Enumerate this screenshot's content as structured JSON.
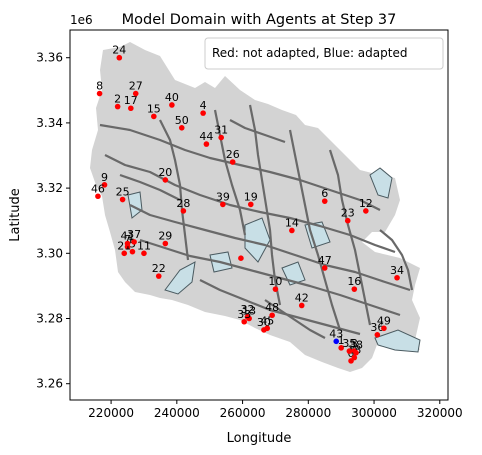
{
  "chart_data": {
    "type": "scatter",
    "title": "Model Domain with Agents at Step 37",
    "xlabel": "Longitude",
    "ylabel": "Latitude",
    "y_offset_label": "1e6",
    "xlim": [
      207500,
      322500
    ],
    "ylim": [
      3255000,
      3368500
    ],
    "x_ticks": [
      220000,
      240000,
      260000,
      280000,
      300000,
      320000
    ],
    "x_tick_labels": [
      "220000",
      "240000",
      "260000",
      "280000",
      "300000",
      "320000"
    ],
    "y_ticks": [
      3260000,
      3280000,
      3300000,
      3320000,
      3340000,
      3360000
    ],
    "y_tick_labels": [
      "3.26",
      "3.28",
      "3.30",
      "3.32",
      "3.34",
      "3.36"
    ],
    "legend_text": "Red: not adapted, Blue: adapted",
    "legend_position": "top-right",
    "colors": {
      "not_adapted": "#ff0000",
      "adapted": "#0000ff",
      "domain_fill": "#d3d3d3",
      "water_fill": "#c8dfe6",
      "river_stroke": "#696969"
    },
    "agents": [
      {
        "id": "0",
        "x": 293000,
        "y": 3267000,
        "adapted": false
      },
      {
        "id": "1",
        "x": 290000,
        "y": 3271000,
        "adapted": false
      },
      {
        "id": "2",
        "x": 222000,
        "y": 3345000,
        "adapted": false
      },
      {
        "id": "3",
        "x": 294000,
        "y": 3270000,
        "adapted": false
      },
      {
        "id": "4",
        "x": 248000,
        "y": 3343000,
        "adapted": false
      },
      {
        "id": "5",
        "x": 226500,
        "y": 3300500,
        "adapted": false
      },
      {
        "id": "6",
        "x": 285000,
        "y": 3316000,
        "adapted": false
      },
      {
        "id": "7",
        "x": 225000,
        "y": 3302000,
        "adapted": false
      },
      {
        "id": "8",
        "x": 216500,
        "y": 3349000,
        "adapted": false
      },
      {
        "id": "9",
        "x": 218000,
        "y": 3321000,
        "adapted": false
      },
      {
        "id": "10",
        "x": 270000,
        "y": 3289000,
        "adapted": false
      },
      {
        "id": "11",
        "x": 230000,
        "y": 3300000,
        "adapted": false
      },
      {
        "id": "12",
        "x": 297500,
        "y": 3313000,
        "adapted": false
      },
      {
        "id": "13",
        "x": 262000,
        "y": 3280000,
        "adapted": false
      },
      {
        "id": "14",
        "x": 275000,
        "y": 3307000,
        "adapted": false
      },
      {
        "id": "15",
        "x": 233000,
        "y": 3342000,
        "adapted": false
      },
      {
        "id": "16",
        "x": 294000,
        "y": 3289000,
        "adapted": false
      },
      {
        "id": "17",
        "x": 226000,
        "y": 3344500,
        "adapted": false
      },
      {
        "id": "18",
        "x": 294000,
        "y": 3268000,
        "adapted": false
      },
      {
        "id": "19",
        "x": 262500,
        "y": 3315000,
        "adapted": false
      },
      {
        "id": "20",
        "x": 236500,
        "y": 3322500,
        "adapted": false
      },
      {
        "id": "21",
        "x": 224000,
        "y": 3300000,
        "adapted": false
      },
      {
        "id": "22",
        "x": 234500,
        "y": 3293000,
        "adapted": false
      },
      {
        "id": "23",
        "x": 292000,
        "y": 3310000,
        "adapted": false
      },
      {
        "id": "24",
        "x": 222500,
        "y": 3360000,
        "adapted": false
      },
      {
        "id": "25",
        "x": 223500,
        "y": 3316500,
        "adapted": false
      },
      {
        "id": "26",
        "x": 257000,
        "y": 3328000,
        "adapted": false
      },
      {
        "id": "27",
        "x": 227500,
        "y": 3349000,
        "adapted": false
      },
      {
        "id": "28",
        "x": 242000,
        "y": 3313000,
        "adapted": false
      },
      {
        "id": "29",
        "x": 236500,
        "y": 3303000,
        "adapted": false
      },
      {
        "id": "30",
        "x": 266500,
        "y": 3276500,
        "adapted": false
      },
      {
        "id": "31",
        "x": 253500,
        "y": 3335500,
        "adapted": false
      },
      {
        "id": "32",
        "x": 261500,
        "y": 3280500,
        "adapted": false
      },
      {
        "id": "33",
        "x": 260500,
        "y": 3279000,
        "adapted": false
      },
      {
        "id": "34",
        "x": 307000,
        "y": 3292500,
        "adapted": false
      },
      {
        "id": "35",
        "x": 292500,
        "y": 3270000,
        "adapted": false
      },
      {
        "id": "36",
        "x": 301000,
        "y": 3275000,
        "adapted": false
      },
      {
        "id": "37",
        "x": 227000,
        "y": 3303500,
        "adapted": false
      },
      {
        "id": "38",
        "x": 294500,
        "y": 3269500,
        "adapted": false
      },
      {
        "id": "39",
        "x": 254000,
        "y": 3315000,
        "adapted": false
      },
      {
        "id": "40",
        "x": 238500,
        "y": 3345500,
        "adapted": false
      },
      {
        "id": "41",
        "x": 225000,
        "y": 3303000,
        "adapted": false
      },
      {
        "id": "42",
        "x": 278000,
        "y": 3284000,
        "adapted": false
      },
      {
        "id": "43",
        "x": 288500,
        "y": 3273000,
        "adapted": true
      },
      {
        "id": "44",
        "x": 249000,
        "y": 3333500,
        "adapted": false
      },
      {
        "id": "45",
        "x": 267500,
        "y": 3277000,
        "adapted": false
      },
      {
        "id": "46",
        "x": 216000,
        "y": 3317500,
        "adapted": false
      },
      {
        "id": "47",
        "x": 285000,
        "y": 3295500,
        "adapted": false
      },
      {
        "id": "48",
        "x": 269000,
        "y": 3281000,
        "adapted": false
      },
      {
        "id": "49",
        "x": 303000,
        "y": 3277000,
        "adapted": false
      },
      {
        "id": "50",
        "x": 241500,
        "y": 3338500,
        "adapted": false
      },
      {
        "id": "",
        "x": 259500,
        "y": 3298500,
        "adapted": false
      }
    ]
  }
}
